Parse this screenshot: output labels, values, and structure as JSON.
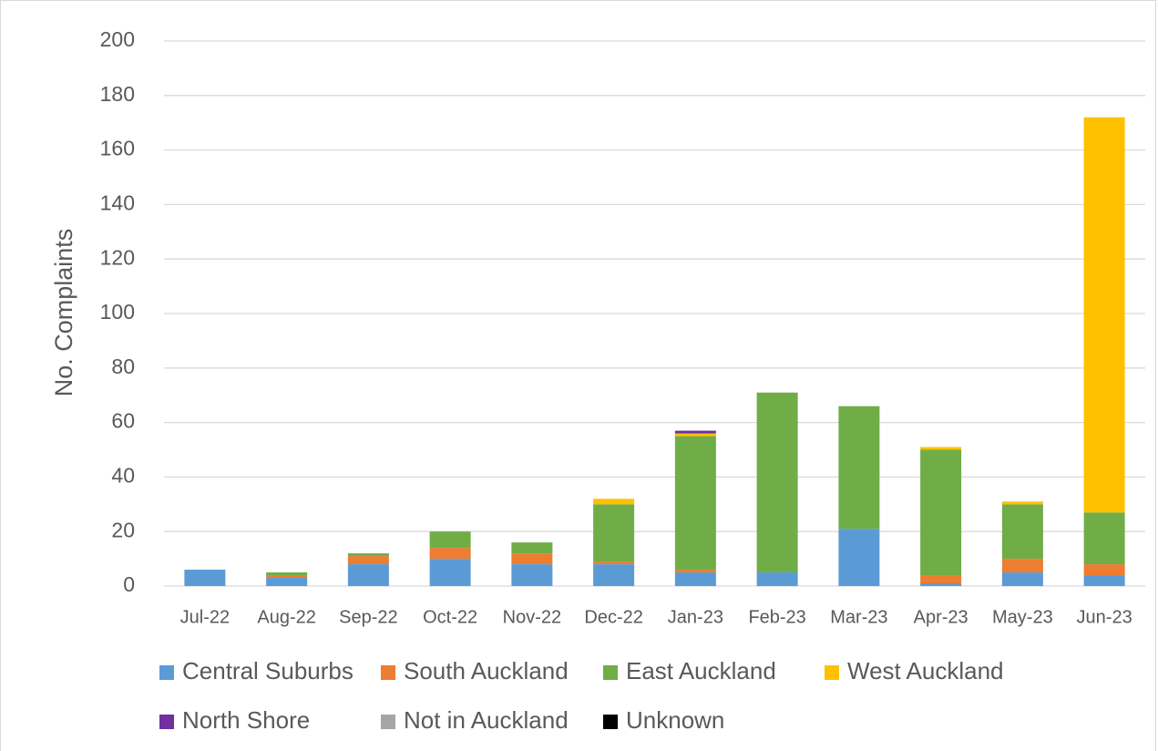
{
  "chart_data": {
    "type": "stacked_bar",
    "y_label": "No. Complaints",
    "categories": [
      "Jul-22",
      "Aug-22",
      "Sep-22",
      "Oct-22",
      "Nov-22",
      "Dec-22",
      "Jan-23",
      "Feb-23",
      "Mar-23",
      "Apr-23",
      "May-23",
      "Jun-23"
    ],
    "series": [
      {
        "name": "Central Suburbs",
        "color": "#5b9bd5",
        "values": [
          6,
          3,
          8,
          10,
          8,
          8,
          5,
          5,
          21,
          1,
          5,
          4
        ]
      },
      {
        "name": "South Auckland",
        "color": "#ed7d31",
        "values": [
          0,
          1,
          3,
          4,
          4,
          1,
          1,
          0,
          0,
          3,
          5,
          4
        ]
      },
      {
        "name": "East Auckland",
        "color": "#70ad47",
        "values": [
          0,
          1,
          1,
          6,
          4,
          21,
          49,
          66,
          45,
          46,
          20,
          19
        ]
      },
      {
        "name": "West Auckland",
        "color": "#ffc000",
        "values": [
          0,
          0,
          0,
          0,
          0,
          2,
          1,
          0,
          0,
          1,
          1,
          145
        ]
      },
      {
        "name": "North Shore",
        "color": "#7030a0",
        "values": [
          0,
          0,
          0,
          0,
          0,
          0,
          1,
          0,
          0,
          0,
          0,
          0
        ]
      },
      {
        "name": "Not in Auckland",
        "color": "#a5a5a5",
        "values": [
          0,
          0,
          0,
          0,
          0,
          0,
          0,
          0,
          0,
          0,
          0,
          0
        ]
      },
      {
        "name": "Unknown",
        "color": "#000000",
        "values": [
          0,
          0,
          0,
          0,
          0,
          0,
          0,
          0,
          0,
          0,
          0,
          0
        ]
      }
    ],
    "ylim": [
      0,
      200
    ],
    "yticks": [
      0,
      20,
      40,
      60,
      80,
      100,
      120,
      140,
      160,
      180,
      200
    ],
    "grid": true
  }
}
